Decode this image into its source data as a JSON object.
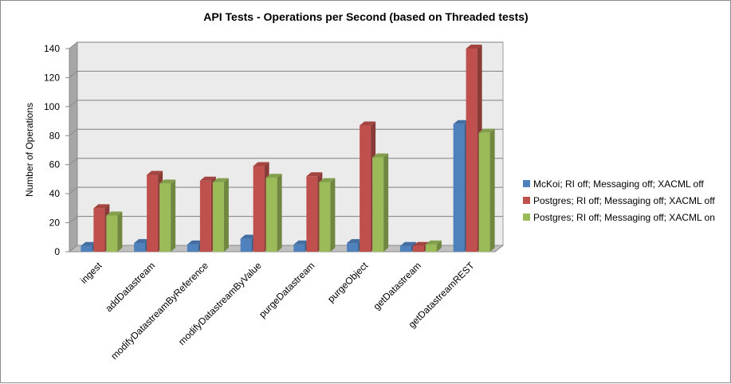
{
  "colors": {
    "series": [
      "#4F81BD",
      "#C0504D",
      "#9BBB59"
    ],
    "wall": "#EBEBEB",
    "grid": "#7f7f7f"
  },
  "chart_data": {
    "type": "bar",
    "title": "API Tests - Operations per Second (based on Threaded tests)",
    "xlabel": "",
    "ylabel": "Number of Operations",
    "ylim": [
      0,
      140
    ],
    "yticks": [
      0,
      20,
      40,
      60,
      80,
      100,
      120,
      140
    ],
    "grid": true,
    "legend_position": "right",
    "categories": [
      "ingest",
      "addDatastream",
      "modifyDatastreamByReference",
      "modifyDatastreamByValue",
      "purgeDatastream",
      "purgeObject",
      "getDatastream",
      "getDatastreamREST"
    ],
    "series": [
      {
        "name": "McKoi; RI off; Messaging off; XACML off",
        "values": [
          4,
          6,
          5,
          9,
          5,
          6,
          4,
          88
        ]
      },
      {
        "name": "Postgres; RI off; Messaging off; XACML off",
        "values": [
          30,
          53,
          49,
          59,
          52,
          87,
          4,
          140
        ]
      },
      {
        "name": "Postgres; RI off; Messaging off; XACML on",
        "values": [
          25,
          47,
          48,
          51,
          48,
          65,
          5,
          82
        ]
      }
    ]
  }
}
